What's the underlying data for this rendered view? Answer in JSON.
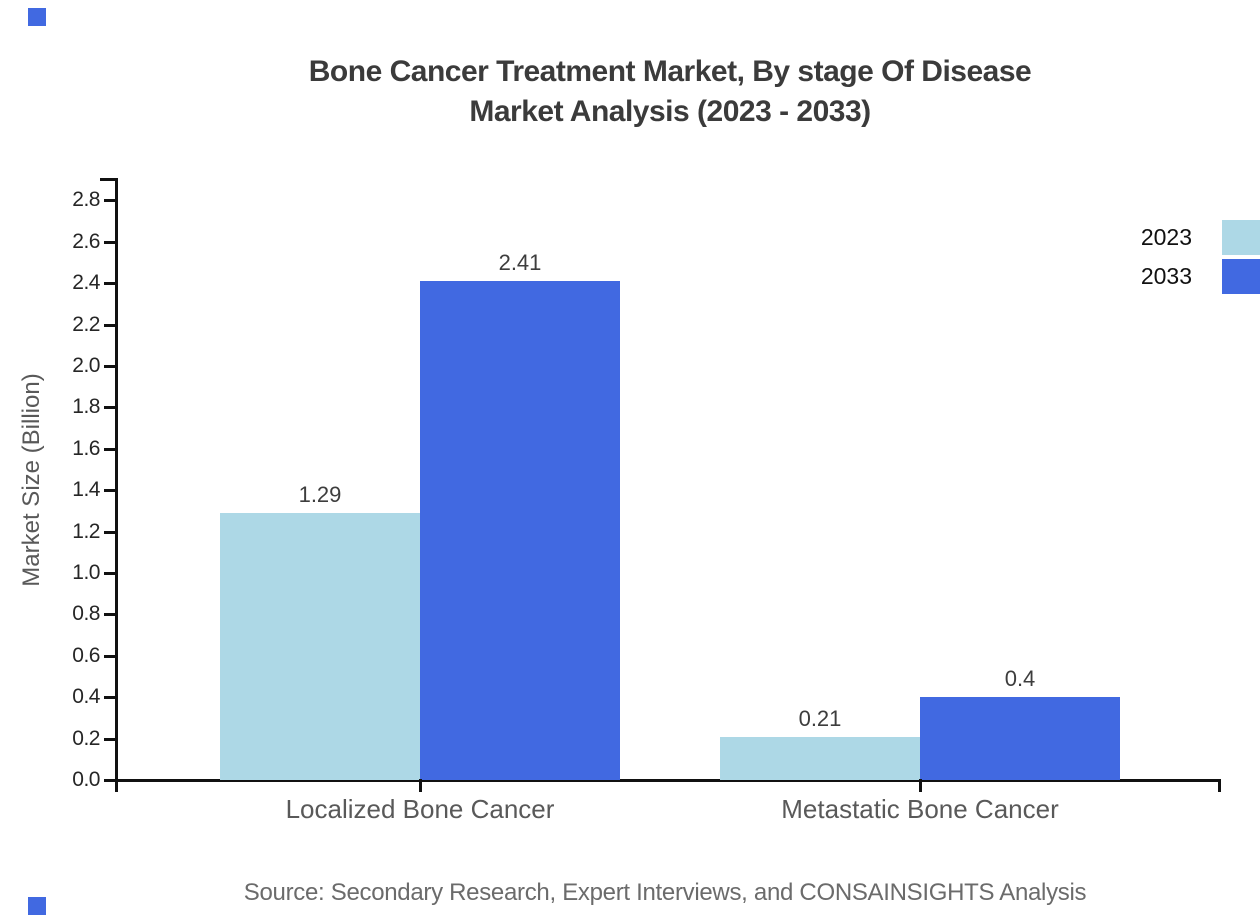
{
  "title": {
    "line1": "Bone Cancer Treatment Market, By stage Of Disease",
    "line2": "Market Analysis (2023 - 2033)"
  },
  "source_text": "Source: Secondary Research, Expert Interviews, and CONSAINSIGHTS Analysis",
  "colors": {
    "series_2023": "#ADD8E6",
    "series_2033": "#4169E1",
    "axis": "#111111",
    "title_text": "#3b3b3b",
    "axis_text": "#595959",
    "tick_text": "#262626",
    "source_text": "#6b6b6b",
    "corner_marker": "#4169E1"
  },
  "chart_data": {
    "type": "bar",
    "title": "Bone Cancer Treatment Market, By stage Of Disease Market Analysis (2023 - 2033)",
    "categories": [
      "Localized Bone Cancer",
      "Metastatic Bone Cancer"
    ],
    "series": [
      {
        "name": "2023",
        "values": [
          1.29,
          0.21
        ],
        "labels": [
          "1.29",
          "0.21"
        ],
        "color": "#ADD8E6"
      },
      {
        "name": "2033",
        "values": [
          2.41,
          0.4
        ],
        "labels": [
          "2.41",
          "0.4"
        ],
        "color": "#4169E1"
      }
    ],
    "xlabel": "",
    "ylabel": "Market Size (Billion)",
    "ylim": [
      0,
      2.9
    ],
    "ytick_step": 0.2,
    "ytick_labels": [
      "0.0",
      "0.2",
      "0.4",
      "0.6",
      "0.8",
      "1.0",
      "1.2",
      "1.4",
      "1.6",
      "1.8",
      "2.0",
      "2.2",
      "2.4",
      "2.6",
      "2.8"
    ],
    "grid": false,
    "legend_position": "right-edge",
    "legend_entries": [
      "2023",
      "2033"
    ]
  }
}
